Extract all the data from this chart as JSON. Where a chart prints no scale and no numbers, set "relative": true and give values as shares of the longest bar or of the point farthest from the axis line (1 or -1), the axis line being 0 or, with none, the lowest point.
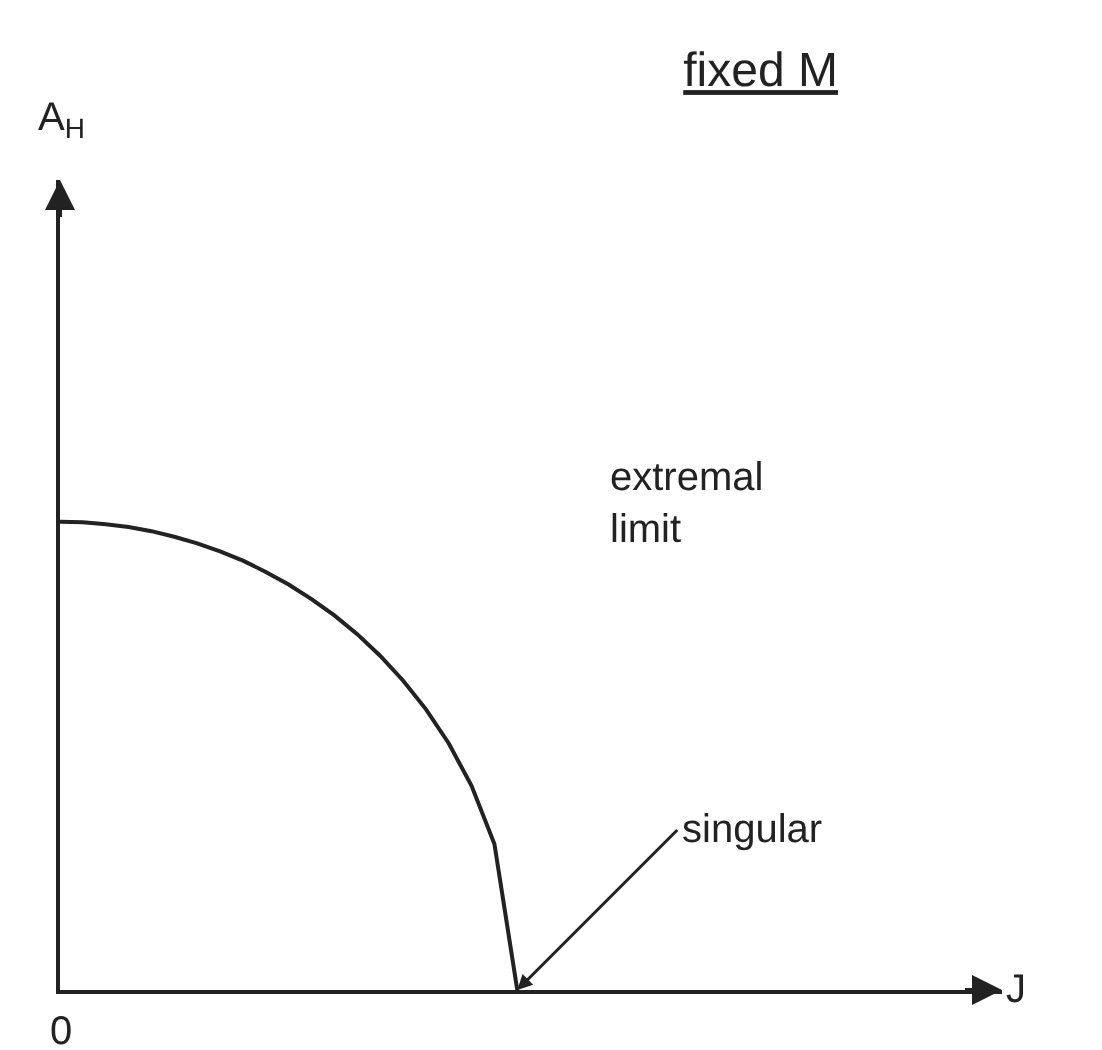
{
  "chart_data": {
    "type": "line",
    "relative": true,
    "title": "fixed M",
    "categories": [
      null,
      null,
      null,
      null,
      null,
      null,
      null,
      null,
      null,
      null,
      null,
      null,
      null,
      null,
      null,
      null,
      null,
      null,
      null,
      null,
      null
    ],
    "series": [
      {
        "color": "#222222",
        "values": [
          1,
          0.999,
          0.995,
          0.989,
          0.98,
          0.968,
          0.954,
          0.937,
          0.917,
          0.893,
          0.866,
          0.835,
          0.8,
          0.76,
          0.714,
          0.661,
          0.6,
          0.527,
          0.436,
          0.312,
          0
        ]
      }
    ],
    "annotations": [
      "extremal\nlimit",
      "singular",
      "0",
      "J",
      "A$_{H}$"
    ]
  }
}
